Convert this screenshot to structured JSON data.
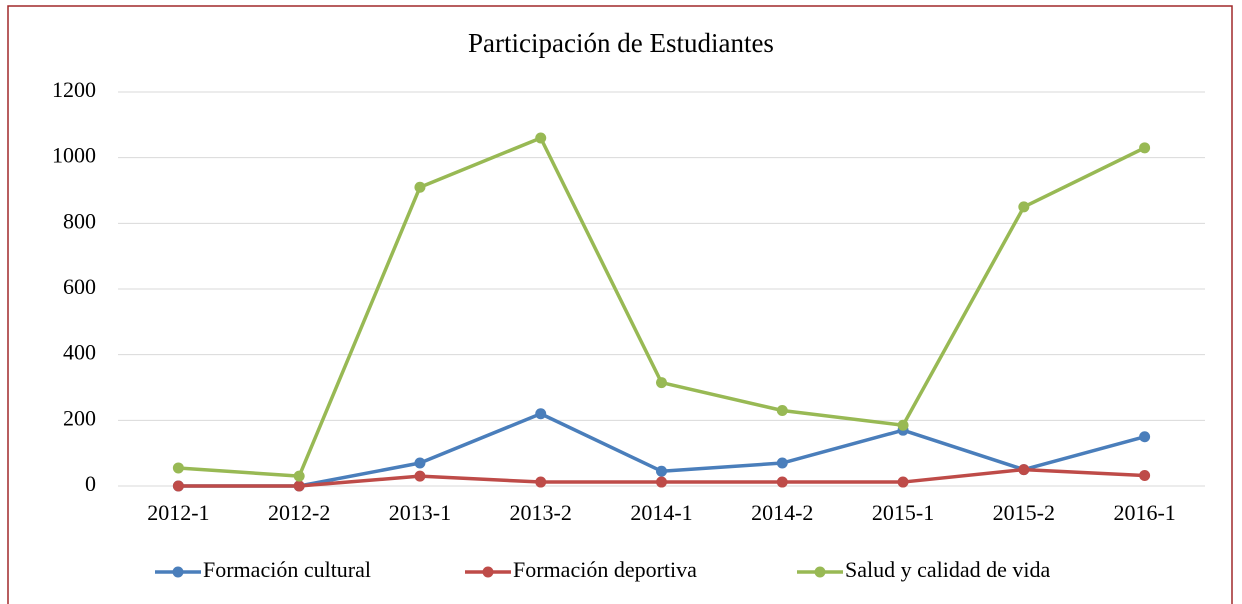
{
  "chart_data": {
    "type": "line",
    "title": "Participación  de Estudiantes",
    "categories": [
      "2012-1",
      "2012-2",
      "2013-1",
      "2013-2",
      "2014-1",
      "2014-2",
      "2015-1",
      "2015-2",
      "2016-1"
    ],
    "series": [
      {
        "name": "Formación cultural",
        "color": "#4a7ebb",
        "values": [
          0,
          0,
          70,
          220,
          45,
          70,
          170,
          50,
          150
        ]
      },
      {
        "name": "Formación deportiva",
        "color": "#be4b48",
        "values": [
          0,
          0,
          30,
          12,
          12,
          12,
          12,
          50,
          32
        ]
      },
      {
        "name": "Salud y calidad de vida",
        "color": "#98b954",
        "values": [
          55,
          30,
          910,
          1060,
          315,
          230,
          185,
          850,
          1030
        ]
      }
    ],
    "ylim": [
      0,
      1200
    ],
    "yticks": [
      0,
      200,
      400,
      600,
      800,
      1000,
      1200
    ],
    "grid": true,
    "legend": "bottom"
  }
}
